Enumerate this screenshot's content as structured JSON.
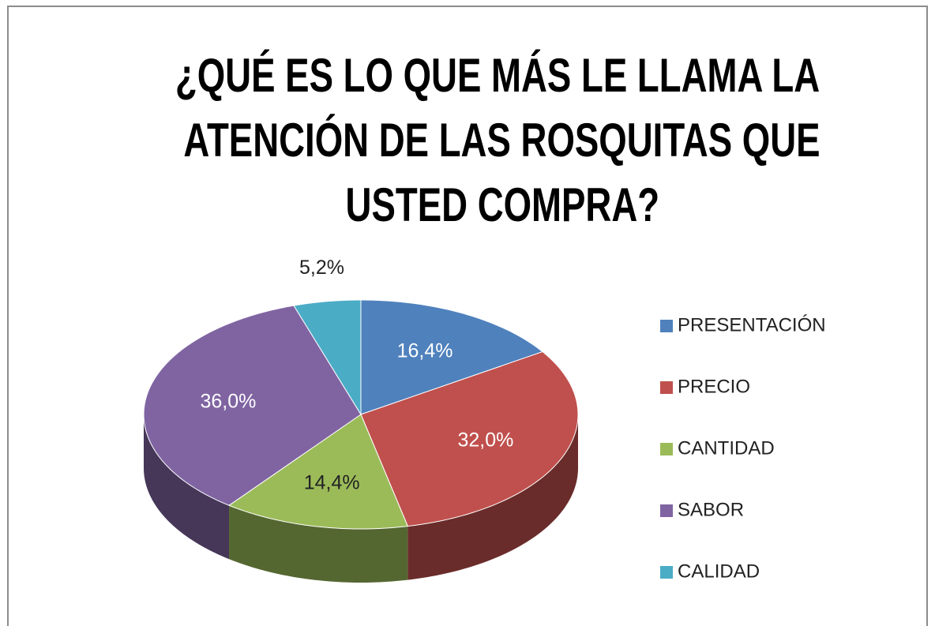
{
  "chart_data": {
    "type": "pie",
    "title": "¿QUÉ ES LO QUE MÁS LE LLAMA LA ATENCIÓN DE LAS ROSQUITAS QUE USTED COMPRA?",
    "categories": [
      "PRESENTACIÓN",
      "PRECIO",
      "CANTIDAD",
      "SABOR",
      "CALIDAD"
    ],
    "values": [
      16.4,
      32.0,
      14.4,
      36.0,
      5.2
    ],
    "value_labels": [
      "16,4%",
      "32,0%",
      "14,4%",
      "36,0%",
      "5,2%"
    ],
    "colors": [
      "#4f81bd",
      "#c0504d",
      "#9bbb59",
      "#8064a2",
      "#4bacc6"
    ],
    "legend": "right"
  }
}
